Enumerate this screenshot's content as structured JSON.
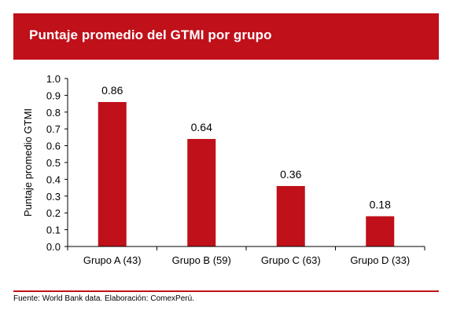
{
  "header": {
    "title": "Puntaje promedio del GTMI por grupo"
  },
  "chart_data": {
    "type": "bar",
    "title": "Puntaje promedio del GTMI por grupo",
    "categories": [
      "Grupo A (43)",
      "Grupo B (59)",
      "Grupo C (63)",
      "Grupo D (33)"
    ],
    "values": [
      0.86,
      0.64,
      0.36,
      0.18
    ],
    "data_labels": [
      "0.86",
      "0.64",
      "0.36",
      "0.18"
    ],
    "ylabel": "Puntaje promedio  GTMI",
    "xlabel": "",
    "ylim": [
      0,
      1.0
    ],
    "yticks": [
      "0.0",
      "0.1",
      "0.2",
      "0.3",
      "0.4",
      "0.5",
      "0.6",
      "0.7",
      "0.8",
      "0.9",
      "1.0"
    ],
    "bar_color": "#c0101a",
    "grid": false,
    "legend": "none"
  },
  "footer": {
    "source": "Fuente: World Bank data. Elaboración: ComexPerú."
  }
}
